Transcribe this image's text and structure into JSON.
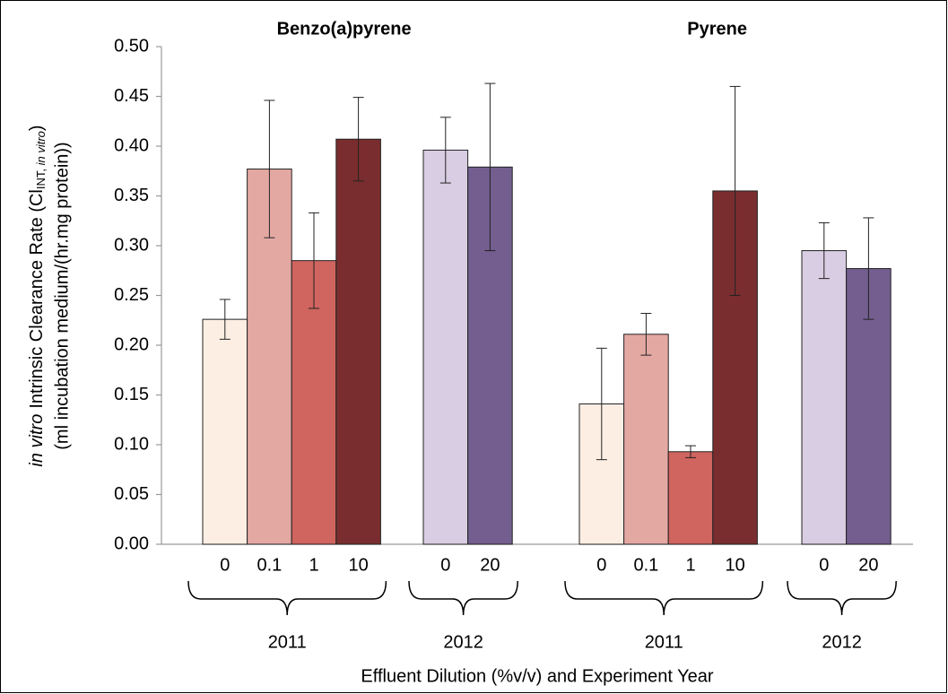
{
  "chart_data": {
    "type": "bar",
    "ylabel": {
      "line1": [
        "in vitro",
        "Intrinsic Clearance Rate (Cl",
        "INT, ",
        "in vitro",
        ")"
      ],
      "line2": "(ml incubation medium/(hr.mg protein))"
    },
    "xlabel": "Effluent Dilution (%v/v) and Experiment Year",
    "ylim": [
      0,
      0.5
    ],
    "yticks": [
      {
        "value": 0,
        "label": "0.00"
      },
      {
        "value": 0.05,
        "label": "0.05"
      },
      {
        "value": 0.1,
        "label": "0.10"
      },
      {
        "value": 0.15,
        "label": "0.15"
      },
      {
        "value": 0.2,
        "label": "0.20"
      },
      {
        "value": 0.25,
        "label": "0.25"
      },
      {
        "value": 0.3,
        "label": "0.30"
      },
      {
        "value": 0.35,
        "label": "0.35"
      },
      {
        "value": 0.4,
        "label": "0.40"
      },
      {
        "value": 0.45,
        "label": "0.45"
      },
      {
        "value": 0.5,
        "label": "0.50"
      }
    ],
    "panels": [
      {
        "title": "Benzo(a)pyrene",
        "groups": [
          {
            "year": "2011",
            "categories": [
              "0",
              "0.1",
              "1",
              "10"
            ],
            "values": [
              0.226,
              0.377,
              0.285,
              0.407
            ],
            "errors": [
              0.02,
              0.069,
              0.048,
              0.042
            ],
            "colors": [
              "#fdeee3",
              "#e4a8a3",
              "#d0645e",
              "#7a2d2e"
            ]
          },
          {
            "year": "2012",
            "categories": [
              "0",
              "20"
            ],
            "values": [
              0.396,
              0.379
            ],
            "errors": [
              0.033,
              0.084
            ],
            "colors": [
              "#d8cde2",
              "#735e8f"
            ]
          }
        ]
      },
      {
        "title": "Pyrene",
        "groups": [
          {
            "year": "2011",
            "categories": [
              "0",
              "0.1",
              "1",
              "10"
            ],
            "values": [
              0.141,
              0.211,
              0.093,
              0.355
            ],
            "errors": [
              0.056,
              0.021,
              0.006,
              0.105
            ],
            "colors": [
              "#fdeee3",
              "#e4a8a3",
              "#d0645e",
              "#7a2d2e"
            ]
          },
          {
            "year": "2012",
            "categories": [
              "0",
              "20"
            ],
            "values": [
              0.295,
              0.277
            ],
            "errors": [
              0.028,
              0.051
            ],
            "colors": [
              "#d8cde2",
              "#735e8f"
            ]
          }
        ]
      }
    ]
  }
}
